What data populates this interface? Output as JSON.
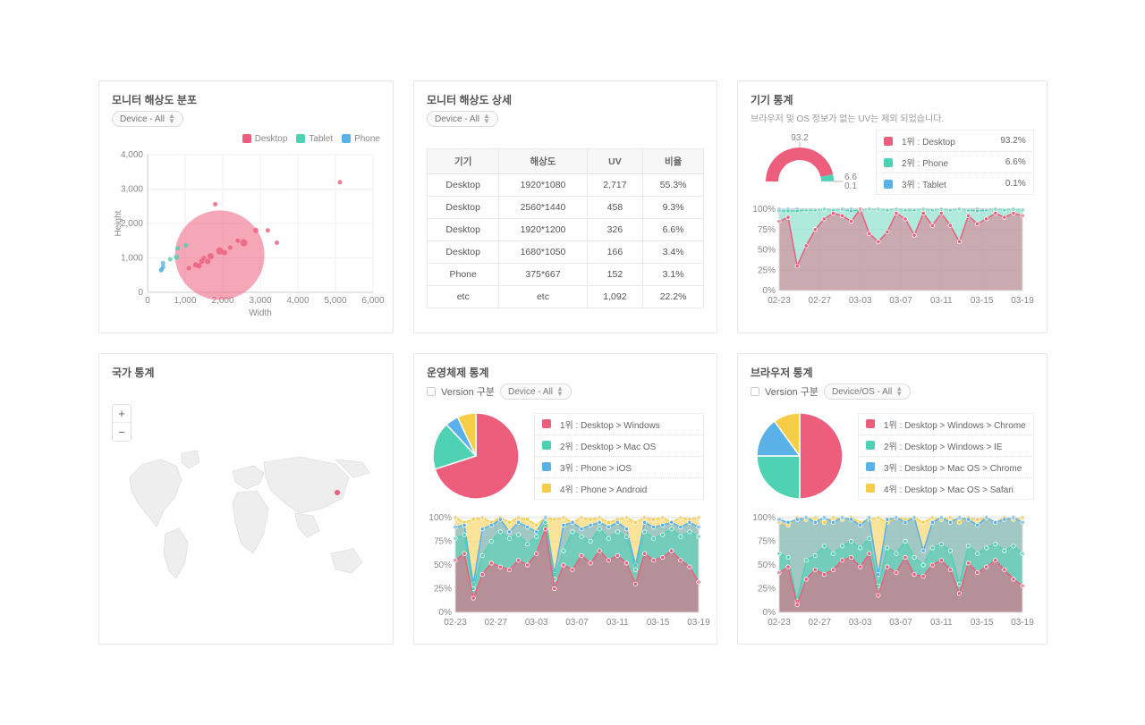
{
  "colors": {
    "desktop": "#ec5e7c",
    "tablet": "#4fd1b3",
    "phone": "#5ab1e8",
    "yellow": "#f7cd47",
    "grid": "#f0f0f0",
    "axis": "#cccccc",
    "text": "#888888",
    "card_border": "#e6e6e6"
  },
  "resolution_scatter": {
    "title": "모니터 해상도 분포",
    "select_label": "Device - All",
    "legend": [
      {
        "label": "Desktop",
        "color": "#ec5e7c"
      },
      {
        "label": "Tablet",
        "color": "#4fd1b3"
      },
      {
        "label": "Phone",
        "color": "#5ab1e8"
      }
    ],
    "xlabel": "Width",
    "ylabel": "Height",
    "xlim": [
      0,
      6000
    ],
    "ylim": [
      0,
      4000
    ],
    "xticks": [
      0,
      1000,
      2000,
      3000,
      4000,
      5000,
      6000
    ],
    "yticks": [
      0,
      1000,
      2000,
      3000,
      4000
    ],
    "xtick_labels": [
      "0",
      "1,000",
      "2,000",
      "3,000",
      "4,000",
      "5,000",
      "6,000"
    ],
    "ytick_labels": [
      "0",
      "1,000",
      "2,000",
      "3,000",
      "4,000"
    ],
    "bubble_main": {
      "x": 1920,
      "y": 1080,
      "r": 50,
      "color": "#ec5e7c",
      "opacity": 0.55
    },
    "points": [
      {
        "x": 375,
        "y": 667,
        "c": "#5ab1e8",
        "r": 2.5
      },
      {
        "x": 414,
        "y": 736,
        "c": "#5ab1e8",
        "r": 2.5
      },
      {
        "x": 360,
        "y": 640,
        "c": "#5ab1e8",
        "r": 2.5
      },
      {
        "x": 412,
        "y": 846,
        "c": "#5ab1e8",
        "r": 2.5
      },
      {
        "x": 768,
        "y": 1024,
        "c": "#4fd1b3",
        "r": 3
      },
      {
        "x": 800,
        "y": 1280,
        "c": "#4fd1b3",
        "r": 2.5
      },
      {
        "x": 600,
        "y": 960,
        "c": "#4fd1b3",
        "r": 2.5
      },
      {
        "x": 1024,
        "y": 1366,
        "c": "#4fd1b3",
        "r": 2.5
      },
      {
        "x": 1280,
        "y": 800,
        "c": "#ec5e7c",
        "r": 3
      },
      {
        "x": 1366,
        "y": 768,
        "c": "#ec5e7c",
        "r": 3
      },
      {
        "x": 1440,
        "y": 900,
        "c": "#ec5e7c",
        "r": 3
      },
      {
        "x": 1600,
        "y": 900,
        "c": "#ec5e7c",
        "r": 3
      },
      {
        "x": 1680,
        "y": 1050,
        "c": "#ec5e7c",
        "r": 3.5
      },
      {
        "x": 1920,
        "y": 1200,
        "c": "#ec5e7c",
        "r": 4
      },
      {
        "x": 2048,
        "y": 1152,
        "c": "#ec5e7c",
        "r": 3
      },
      {
        "x": 2560,
        "y": 1440,
        "c": "#ec5e7c",
        "r": 4
      },
      {
        "x": 2880,
        "y": 1800,
        "c": "#ec5e7c",
        "r": 3
      },
      {
        "x": 3200,
        "y": 1800,
        "c": "#ec5e7c",
        "r": 2.5
      },
      {
        "x": 3440,
        "y": 1440,
        "c": "#ec5e7c",
        "r": 2.5
      },
      {
        "x": 1800,
        "y": 2560,
        "c": "#ec5e7c",
        "r": 2.5
      },
      {
        "x": 5120,
        "y": 3200,
        "c": "#ec5e7c",
        "r": 2.5
      },
      {
        "x": 1100,
        "y": 700,
        "c": "#ec5e7c",
        "r": 2.5
      },
      {
        "x": 1500,
        "y": 1000,
        "c": "#ec5e7c",
        "r": 2.5
      },
      {
        "x": 2200,
        "y": 1300,
        "c": "#ec5e7c",
        "r": 2.5
      },
      {
        "x": 2400,
        "y": 1500,
        "c": "#ec5e7c",
        "r": 2.5
      }
    ]
  },
  "resolution_table": {
    "title": "모니터 해상도 상세",
    "select_label": "Device - All",
    "columns": [
      "기기",
      "해상도",
      "UV",
      "비율"
    ],
    "rows": [
      [
        "Desktop",
        "1920*1080",
        "2,717",
        "55.3%"
      ],
      [
        "Desktop",
        "2560*1440",
        "458",
        "9.3%"
      ],
      [
        "Desktop",
        "1920*1200",
        "326",
        "6.6%"
      ],
      [
        "Desktop",
        "1680*1050",
        "166",
        "3.4%"
      ],
      [
        "Phone",
        "375*667",
        "152",
        "3.1%"
      ],
      [
        "etc",
        "etc",
        "1,092",
        "22.2%"
      ]
    ]
  },
  "device_stats": {
    "title": "기기 통계",
    "subtitle": "브라우저 및 OS 정보가 없는 UV는 제외 되었습니다.",
    "gauge": {
      "top_label": "93.2",
      "side_labels": [
        "6.6",
        "0.1"
      ],
      "segments": [
        {
          "color": "#ec5e7c",
          "pct": 93.2
        },
        {
          "color": "#4fd1b3",
          "pct": 6.6
        },
        {
          "color": "#5ab1e8",
          "pct": 0.1
        }
      ]
    },
    "legend": [
      {
        "label": "1위 : Desktop",
        "value": "93.2%",
        "color": "#ec5e7c"
      },
      {
        "label": "2위 : Phone",
        "value": "6.6%",
        "color": "#4fd1b3"
      },
      {
        "label": "3위 : Tablet",
        "value": "0.1%",
        "color": "#5ab1e8"
      }
    ],
    "trend": {
      "ylim": [
        0,
        100
      ],
      "yticks": [
        0,
        25,
        50,
        75,
        100
      ],
      "ytick_labels": [
        "0%",
        "25%",
        "50%",
        "75%",
        "100%"
      ],
      "xlabels": [
        "02-23",
        "02-27",
        "03-03",
        "03-07",
        "03-11",
        "03-15",
        "03-19"
      ],
      "series": [
        {
          "color": "#5ab1e8",
          "fill": "#5ab1e8",
          "opacity": 0.0,
          "values": [
            100,
            100,
            100,
            100,
            100,
            100,
            100,
            100,
            100,
            100,
            100,
            100,
            100,
            100,
            100,
            100,
            100,
            100,
            100,
            100,
            100,
            100,
            100,
            100,
            100,
            100,
            100,
            100
          ]
        },
        {
          "color": "#4fd1b3",
          "fill": "#4fd1b3",
          "opacity": 0.45,
          "values": [
            98,
            98,
            98,
            99,
            99,
            100,
            99,
            100,
            98,
            99,
            100,
            100,
            99,
            100,
            99,
            99,
            100,
            99,
            100,
            99,
            100,
            99,
            98,
            99,
            100,
            99,
            100,
            99
          ]
        },
        {
          "color": "#ec5e7c",
          "fill": "#ec5e7c",
          "opacity": 0.45,
          "values": [
            85,
            90,
            30,
            55,
            75,
            88,
            95,
            92,
            85,
            100,
            70,
            60,
            72,
            95,
            88,
            68,
            95,
            80,
            95,
            80,
            60,
            92,
            82,
            88,
            95,
            90,
            95,
            92
          ]
        }
      ]
    }
  },
  "country_stats": {
    "title": "국가 통계",
    "zoom_in": "+",
    "zoom_out": "−"
  },
  "os_stats": {
    "title": "운영체제 통계",
    "checkbox_label": "Version 구분",
    "select_label": "Device - All",
    "pie": [
      {
        "color": "#ec5e7c",
        "pct": 70
      },
      {
        "color": "#4fd1b3",
        "pct": 18
      },
      {
        "color": "#5ab1e8",
        "pct": 5
      },
      {
        "color": "#f7cd47",
        "pct": 7
      }
    ],
    "legend": [
      {
        "label": "1위 : Desktop > Windows",
        "color": "#ec5e7c"
      },
      {
        "label": "2위 : Desktop > Mac OS",
        "color": "#4fd1b3"
      },
      {
        "label": "3위 : Phone > iOS",
        "color": "#5ab1e8"
      },
      {
        "label": "4위 : Phone > Android",
        "color": "#f7cd47"
      }
    ],
    "trend": {
      "ylim": [
        0,
        100
      ],
      "yticks": [
        0,
        25,
        50,
        75,
        100
      ],
      "ytick_labels": [
        "0%",
        "25%",
        "50%",
        "75%",
        "100%"
      ],
      "xlabels": [
        "02-23",
        "02-27",
        "03-03",
        "03-07",
        "03-11",
        "03-15",
        "03-19"
      ],
      "series": [
        {
          "color": "#f7cd47",
          "opacity": 0.55,
          "values": [
            100,
            95,
            98,
            100,
            95,
            100,
            95,
            100,
            98,
            92,
            100,
            98,
            100,
            95,
            100,
            98,
            100,
            95,
            98,
            100,
            95,
            100,
            98,
            100,
            95,
            100,
            98,
            100
          ]
        },
        {
          "color": "#5ab1e8",
          "opacity": 0.55,
          "values": [
            90,
            92,
            30,
            88,
            92,
            98,
            85,
            95,
            90,
            85,
            100,
            40,
            92,
            95,
            88,
            92,
            95,
            90,
            95,
            88,
            50,
            95,
            90,
            92,
            95,
            90,
            95,
            90
          ]
        },
        {
          "color": "#4fd1b3",
          "opacity": 0.55,
          "values": [
            78,
            82,
            25,
            60,
            75,
            85,
            78,
            82,
            72,
            80,
            95,
            35,
            65,
            85,
            80,
            75,
            88,
            78,
            85,
            80,
            45,
            85,
            78,
            82,
            88,
            80,
            85,
            80
          ]
        },
        {
          "color": "#ec5e7c",
          "opacity": 0.55,
          "values": [
            55,
            62,
            15,
            40,
            52,
            48,
            45,
            55,
            50,
            62,
            88,
            25,
            50,
            45,
            60,
            52,
            65,
            55,
            60,
            52,
            30,
            62,
            55,
            58,
            65,
            55,
            48,
            32
          ]
        }
      ]
    }
  },
  "browser_stats": {
    "title": "브라우저 통계",
    "checkbox_label": "Version 구분",
    "select_label": "Device/OS - All",
    "pie": [
      {
        "color": "#ec5e7c",
        "pct": 50
      },
      {
        "color": "#4fd1b3",
        "pct": 25
      },
      {
        "color": "#5ab1e8",
        "pct": 15
      },
      {
        "color": "#f7cd47",
        "pct": 10
      }
    ],
    "legend": [
      {
        "label": "1위 : Desktop > Windows > Chrome",
        "color": "#ec5e7c"
      },
      {
        "label": "2위 : Desktop > Windows > IE",
        "color": "#4fd1b3"
      },
      {
        "label": "3위 : Desktop > Mac OS > Chrome",
        "color": "#5ab1e8"
      },
      {
        "label": "4위 : Desktop > Mac OS > Safari",
        "color": "#f7cd47"
      }
    ],
    "trend": {
      "ylim": [
        0,
        100
      ],
      "yticks": [
        0,
        25,
        50,
        75,
        100
      ],
      "ytick_labels": [
        "0%",
        "25%",
        "50%",
        "75%",
        "100%"
      ],
      "xlabels": [
        "02-23",
        "02-27",
        "03-03",
        "03-07",
        "03-11",
        "03-15",
        "03-19"
      ],
      "series": [
        {
          "color": "#f7cd47",
          "opacity": 0.55,
          "values": [
            95,
            92,
            100,
            98,
            100,
            95,
            100,
            98,
            100,
            95,
            98,
            100,
            95,
            100,
            98,
            100,
            95,
            100,
            98,
            100,
            95,
            100,
            98,
            100,
            95,
            100,
            98,
            100
          ]
        },
        {
          "color": "#5ab1e8",
          "opacity": 0.55,
          "values": [
            98,
            95,
            98,
            100,
            95,
            100,
            95,
            100,
            98,
            92,
            100,
            40,
            98,
            100,
            95,
            100,
            65,
            95,
            100,
            95,
            100,
            98,
            92,
            100,
            95,
            98,
            100,
            95
          ]
        },
        {
          "color": "#4fd1b3",
          "opacity": 0.55,
          "values": [
            62,
            58,
            12,
            55,
            60,
            70,
            62,
            70,
            75,
            68,
            78,
            28,
            68,
            62,
            75,
            58,
            50,
            68,
            72,
            65,
            30,
            70,
            62,
            68,
            72,
            65,
            70,
            62
          ]
        },
        {
          "color": "#ec5e7c",
          "opacity": 0.55,
          "values": [
            42,
            48,
            8,
            35,
            45,
            40,
            45,
            55,
            58,
            48,
            62,
            18,
            48,
            42,
            58,
            40,
            38,
            50,
            55,
            45,
            20,
            52,
            42,
            48,
            55,
            45,
            35,
            28
          ]
        }
      ]
    }
  }
}
